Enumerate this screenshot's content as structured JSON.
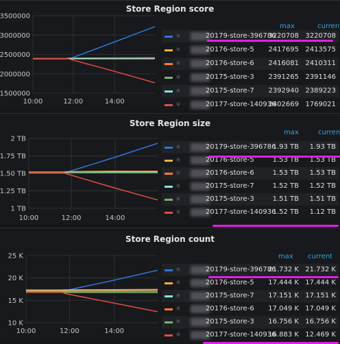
{
  "colors": {
    "blue": "#3274d9",
    "yellow": "#f2b233",
    "orange": "#ff7f2a",
    "green": "#6ed0a0",
    "cyan": "#8ae0e6",
    "red": "#e24d42",
    "lgreen": "#7eb26d",
    "accent": "#33a2e5",
    "highlight": "#e020e6"
  },
  "panels": [
    {
      "title": "Store Region score",
      "legend_headers": [
        "max",
        "current"
      ],
      "rows": [
        {
          "name": "20179-store-396786",
          "color": "blue",
          "max": "3220708",
          "current": "3220708"
        },
        {
          "name": "20176-store-5",
          "color": "yellow",
          "max": "2417695",
          "current": "2413575"
        },
        {
          "name": "20176-store-6",
          "color": "orange",
          "max": "2416081",
          "current": "2410311"
        },
        {
          "name": "20175-store-3",
          "color": "lgreen",
          "max": "2391265",
          "current": "2391146"
        },
        {
          "name": "20175-store-7",
          "color": "cyan",
          "max": "2392940",
          "current": "2389223"
        },
        {
          "name": "20177-store-140936",
          "color": "red",
          "max": "2402669",
          "current": "1769021"
        }
      ],
      "chart_data": {
        "type": "line",
        "title": "Store Region score",
        "yticks": [
          "3500000",
          "3000000",
          "2500000",
          "2000000",
          "1500000"
        ],
        "xticks": [
          "10:00",
          "12:00",
          "14:00"
        ],
        "ylim": [
          1500000,
          3500000
        ],
        "grid": true,
        "series": [
          {
            "name": "20179-store-396786",
            "color": "blue",
            "values": [
              2390000,
              2390000,
              2390000,
              2800000,
              3220708
            ]
          },
          {
            "name": "20176-store-5",
            "color": "yellow",
            "values": [
              2400000,
              2400000,
              2405000,
              2410000,
              2413575
            ]
          },
          {
            "name": "20176-store-6",
            "color": "orange",
            "values": [
              2395000,
              2395000,
              2400000,
              2405000,
              2410311
            ]
          },
          {
            "name": "20175-store-3",
            "color": "lgreen",
            "values": [
              2390000,
              2390000,
              2390000,
              2391000,
              2391146
            ]
          },
          {
            "name": "20175-store-7",
            "color": "cyan",
            "values": [
              2392000,
              2392000,
              2390000,
              2389500,
              2389223
            ]
          },
          {
            "name": "20177-store-140936",
            "color": "red",
            "values": [
              2400000,
              2400000,
              2380000,
              2080000,
              1769021
            ]
          }
        ]
      }
    },
    {
      "title": "Store Region size",
      "legend_headers": [
        "max",
        "current"
      ],
      "rows": [
        {
          "name": "20179-store-396786",
          "color": "blue",
          "max": "1.93 TB",
          "current": "1.93 TB"
        },
        {
          "name": "20176-store-5",
          "color": "yellow",
          "max": "1.53 TB",
          "current": "1.53 TB"
        },
        {
          "name": "20176-store-6",
          "color": "orange",
          "max": "1.53 TB",
          "current": "1.53 TB"
        },
        {
          "name": "20175-store-7",
          "color": "cyan",
          "max": "1.52 TB",
          "current": "1.52 TB"
        },
        {
          "name": "20175-store-3",
          "color": "lgreen",
          "max": "1.51 TB",
          "current": "1.51 TB"
        },
        {
          "name": "20177-store-140936",
          "color": "red",
          "max": "1.52 TB",
          "current": "1.12 TB"
        }
      ],
      "chart_data": {
        "type": "line",
        "title": "Store Region size",
        "yticks": [
          "2 TB",
          "1.75 TB",
          "1.50 TB",
          "1.25 TB",
          "1 TB"
        ],
        "xticks": [
          "10:00",
          "12:00",
          "14:00"
        ],
        "ylim": [
          1,
          2
        ],
        "grid": true,
        "series": [
          {
            "name": "20179-store-396786",
            "color": "blue",
            "values": [
              1.51,
              1.51,
              1.52,
              1.72,
              1.93
            ]
          },
          {
            "name": "20176-store-5",
            "color": "yellow",
            "values": [
              1.52,
              1.52,
              1.525,
              1.53,
              1.53
            ]
          },
          {
            "name": "20176-store-6",
            "color": "orange",
            "values": [
              1.515,
              1.515,
              1.52,
              1.525,
              1.53
            ]
          },
          {
            "name": "20175-store-7",
            "color": "cyan",
            "values": [
              1.51,
              1.51,
              1.515,
              1.52,
              1.52
            ]
          },
          {
            "name": "20175-store-3",
            "color": "lgreen",
            "values": [
              1.505,
              1.505,
              1.51,
              1.51,
              1.51
            ]
          },
          {
            "name": "20177-store-140936",
            "color": "red",
            "values": [
              1.51,
              1.51,
              1.49,
              1.3,
              1.12
            ]
          }
        ]
      }
    },
    {
      "title": "Store Region count",
      "legend_headers": [
        "max",
        "current"
      ],
      "rows": [
        {
          "name": "20179-store-396786",
          "color": "blue",
          "max": "21.732 K",
          "current": "21.732 K"
        },
        {
          "name": "20176-store-5",
          "color": "yellow",
          "max": "17.444 K",
          "current": "17.444 K"
        },
        {
          "name": "20175-store-7",
          "color": "cyan",
          "max": "17.151 K",
          "current": "17.151 K"
        },
        {
          "name": "20176-store-6",
          "color": "orange",
          "max": "17.049 K",
          "current": "17.049 K"
        },
        {
          "name": "20175-store-3",
          "color": "lgreen",
          "max": "16.756 K",
          "current": "16.756 K"
        },
        {
          "name": "20177-store-140936",
          "color": "red",
          "max": "16.883 K",
          "current": "12.469 K"
        }
      ],
      "chart_data": {
        "type": "line",
        "title": "Store Region count",
        "yticks": [
          "25 K",
          "20 K",
          "15 K",
          "10 K"
        ],
        "xticks": [
          "10:00",
          "12:00",
          "14:00"
        ],
        "ylim": [
          10000,
          25000
        ],
        "grid": true,
        "series": [
          {
            "name": "20179-store-396786",
            "color": "blue",
            "values": [
              16900,
              16900,
              17200,
              19400,
              21732
            ]
          },
          {
            "name": "20176-store-5",
            "color": "yellow",
            "values": [
              17300,
              17300,
              17350,
              17400,
              17444
            ]
          },
          {
            "name": "20175-store-7",
            "color": "cyan",
            "values": [
              17100,
              17100,
              17120,
              17140,
              17151
            ]
          },
          {
            "name": "20176-store-6",
            "color": "orange",
            "values": [
              17000,
              17000,
              17020,
              17040,
              17049
            ]
          },
          {
            "name": "20175-store-3",
            "color": "lgreen",
            "values": [
              16800,
              16800,
              16780,
              16760,
              16756
            ]
          },
          {
            "name": "20177-store-140936",
            "color": "red",
            "values": [
              16880,
              16880,
              16500,
              14500,
              12469
            ]
          }
        ]
      }
    }
  ]
}
